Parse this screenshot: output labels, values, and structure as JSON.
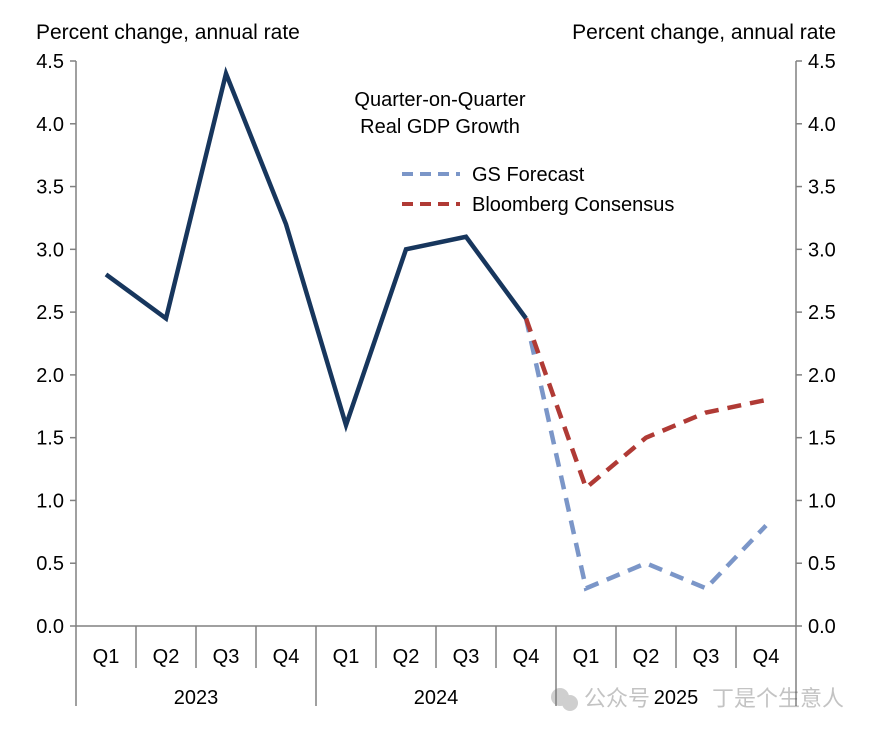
{
  "chart_data": {
    "type": "line",
    "title": "Quarter-on-Quarter Real GDP Growth",
    "title_lines": [
      "Quarter-on-Quarter",
      "Real GDP Growth"
    ],
    "ylabel_left": "Percent change, annual rate",
    "ylabel_right": "Percent change, annual rate",
    "ylim": [
      0,
      4.5
    ],
    "yticks": [
      "0.0",
      "0.5",
      "1.0",
      "1.5",
      "2.0",
      "2.5",
      "3.0",
      "3.5",
      "4.0",
      "4.5"
    ],
    "grid": false,
    "legend_position": "top-center",
    "quarters": [
      "Q1",
      "Q2",
      "Q3",
      "Q4",
      "Q1",
      "Q2",
      "Q3",
      "Q4",
      "Q1",
      "Q2",
      "Q3",
      "Q4"
    ],
    "years": [
      "2023",
      "2024",
      "2025"
    ],
    "series": [
      {
        "name": "",
        "color": "#17365d",
        "style": "solid",
        "start": 0,
        "values": [
          2.8,
          2.45,
          4.4,
          3.2,
          1.6,
          3.0,
          3.1,
          2.45
        ]
      },
      {
        "name": "GS Forecast",
        "color": "#7b96c8",
        "style": "dashed",
        "start": 7,
        "values": [
          2.45,
          0.3,
          0.5,
          0.3,
          0.8
        ]
      },
      {
        "name": "Bloomberg Consensus",
        "color": "#b03a35",
        "style": "dashed",
        "start": 7,
        "values": [
          2.45,
          1.1,
          1.5,
          1.7,
          1.8
        ]
      }
    ]
  },
  "watermark": {
    "prefix": "公众号",
    "name": "丁是个生意人"
  }
}
